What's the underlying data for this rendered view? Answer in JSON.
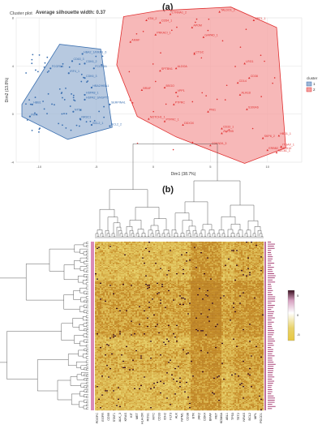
{
  "panel_a": {
    "label": "(a)",
    "plot_name": "Cluster plot",
    "silhouette_text": "Average silhouette width: 0.37"
  },
  "panel_b": {
    "label": "(b)"
  },
  "colors": {
    "cluster1": "#3a6fb0",
    "cluster1_fill": "#9fb7d6",
    "cluster2": "#e03030",
    "cluster2_fill": "#f4a0a0",
    "hm_low": "#e8d26a",
    "hm_mid": "#c8902a",
    "hm_high": "#3a1020"
  },
  "chart_data": [
    {
      "type": "scatter",
      "title": "Cluster plot",
      "subtitle": "Average silhouette width: 0.37",
      "xlabel": "Dim1 (38.7%)",
      "ylabel": "Dim2 (13.8%)",
      "xlim": [
        -12,
        13
      ],
      "ylim": [
        -4,
        8
      ],
      "x_ticks": [
        "-10",
        "-5",
        "0",
        "5",
        "10"
      ],
      "y_ticks": [
        "-4",
        "0",
        "4",
        "8"
      ],
      "grid": true,
      "legend": {
        "title": "cluster",
        "placement": "right",
        "entries": [
          "1",
          "2"
        ]
      },
      "series": [
        {
          "name": "1",
          "hull": [
            [
              -11.5,
              0.8
            ],
            [
              -8.2,
              5.8
            ],
            [
              -4.6,
              5.4
            ],
            [
              -3.6,
              -1.1
            ],
            [
              -7.5,
              -2.1
            ],
            [
              -11.5,
              -0.2
            ]
          ],
          "points": [
            {
              "x": -6.2,
              "y": 5.0,
              "label": "HBA2_1/KRAS_6"
            },
            {
              "x": -7.1,
              "y": 4.4,
              "label": "CD63_3"
            },
            {
              "x": -6.0,
              "y": 4.2,
              "label": "CDK6_2"
            },
            {
              "x": -9.0,
              "y": 3.8,
              "label": "FCGR1A"
            },
            {
              "x": -5.2,
              "y": 3.8,
              "label": "FCGR3A"
            },
            {
              "x": -7.4,
              "y": 3.4,
              "label": "IRF4_1"
            },
            {
              "x": -6.0,
              "y": 3.0,
              "label": "CDK6_3"
            },
            {
              "x": -5.4,
              "y": 2.2,
              "label": "HBA2/HBA1"
            },
            {
              "x": -6.0,
              "y": 1.6,
              "label": "HSPA8_1"
            },
            {
              "x": -6.0,
              "y": 1.2,
              "label": "HSPA2_3/HSPT2"
            },
            {
              "x": -3.8,
              "y": 0.8,
              "label": "SERPINA1"
            },
            {
              "x": -7.0,
              "y": 0.2,
              "label": "NT5E"
            },
            {
              "x": -6.4,
              "y": -0.4,
              "label": "NR3C1"
            },
            {
              "x": -5.4,
              "y": -0.9,
              "label": "BCL2_1"
            },
            {
              "x": -3.8,
              "y": -1.0,
              "label": "BCL2_2"
            },
            {
              "x": -10.6,
              "y": 0.8,
              "label": "HBB1"
            },
            {
              "x": -10.8,
              "y": -0.2,
              "label": "INPA"
            }
          ]
        },
        {
          "name": "2",
          "hull": [
            [
              -2.6,
              8.1
            ],
            [
              0.5,
              8.6
            ],
            [
              6.8,
              8.9
            ],
            [
              10.8,
              7.2
            ],
            [
              11.6,
              -2.8
            ],
            [
              8.0,
              -4.1
            ],
            [
              2.0,
              -1.9
            ],
            [
              -1.4,
              -0.2
            ],
            [
              -3.2,
              4.1
            ]
          ],
          "points": [
            {
              "x": 5.8,
              "y": 8.5,
              "label": "TALDO1_2"
            },
            {
              "x": 1.5,
              "y": 8.3,
              "label": "CTNNA1_2"
            },
            {
              "x": -0.6,
              "y": 7.8,
              "label": "ATM_2"
            },
            {
              "x": 8.8,
              "y": 7.8,
              "label": "SPP1_1"
            },
            {
              "x": 0.6,
              "y": 7.6,
              "label": "CD54_1"
            },
            {
              "x": 3.4,
              "y": 7.2,
              "label": "APOM"
            },
            {
              "x": 0.2,
              "y": 6.6,
              "label": "PRKACI_1"
            },
            {
              "x": 4.4,
              "y": 6.4,
              "label": "GAPAD_1"
            },
            {
              "x": -2.0,
              "y": 6.0,
              "label": "AMHF"
            },
            {
              "x": 3.6,
              "y": 5.0,
              "label": "CTGC"
            },
            {
              "x": 8.0,
              "y": 4.2,
              "label": "LRG1"
            },
            {
              "x": 2.0,
              "y": 3.8,
              "label": "ALDOA"
            },
            {
              "x": 0.6,
              "y": 3.6,
              "label": "SPTBN1"
            },
            {
              "x": 8.4,
              "y": 3.0,
              "label": "CD38"
            },
            {
              "x": 7.4,
              "y": 2.6,
              "label": "CD14"
            },
            {
              "x": 1.0,
              "y": 2.2,
              "label": "BSGO"
            },
            {
              "x": -1.0,
              "y": 2.0,
              "label": "BRAF"
            },
            {
              "x": 2.0,
              "y": 1.8,
              "label": "VPP1"
            },
            {
              "x": 7.6,
              "y": 1.6,
              "label": "ALHLB"
            },
            {
              "x": 1.8,
              "y": 0.8,
              "label": "PTPRC"
            },
            {
              "x": 8.2,
              "y": 0.4,
              "label": "S100A6"
            },
            {
              "x": 4.8,
              "y": 0.2,
              "label": "PNI1"
            },
            {
              "x": 1.0,
              "y": -0.6,
              "label": "PTPRC_1"
            },
            {
              "x": -0.4,
              "y": -0.4,
              "label": "NOTCH1_1"
            },
            {
              "x": 2.6,
              "y": -0.9,
              "label": "DDX3X"
            },
            {
              "x": 6.0,
              "y": -1.2,
              "label": "CD33_1"
            },
            {
              "x": 6.0,
              "y": -1.6,
              "label": "ZNF205"
            },
            {
              "x": 11.0,
              "y": -1.8,
              "label": "HBD1_1"
            },
            {
              "x": 9.6,
              "y": -2.0,
              "label": "SKP6_2"
            },
            {
              "x": 5.0,
              "y": -2.6,
              "label": "CDKN2A_3"
            },
            {
              "x": 11.2,
              "y": -2.7,
              "label": "ITGAX_1"
            },
            {
              "x": 10.0,
              "y": -3.0,
              "label": "ERBB2_TMED10"
            },
            {
              "x": 10.8,
              "y": -3.2,
              "label": "SEC61_1"
            }
          ]
        }
      ]
    },
    {
      "type": "heatmap",
      "colorbar_ticks": [
        "5",
        "0",
        "-5"
      ],
      "column_labels": [
        "PDGFC",
        "EGFR",
        "CD99",
        "STAT1",
        "ALK_3",
        "KRAS",
        "KIT",
        "MET",
        "HLA-DR",
        "ROS1",
        "MYC",
        "CD33",
        "IDH2",
        "FLT3",
        "ALK",
        "NPM1",
        "CD38",
        "BTK",
        "JAK2",
        "CDK4",
        "BRAF",
        "RET",
        "KDM6A",
        "ABL1",
        "TP53",
        "TET2",
        "NRAS",
        "BCL2",
        "MPL",
        "PDCD1"
      ],
      "n_rows": 160,
      "n_cols": 104
    }
  ]
}
